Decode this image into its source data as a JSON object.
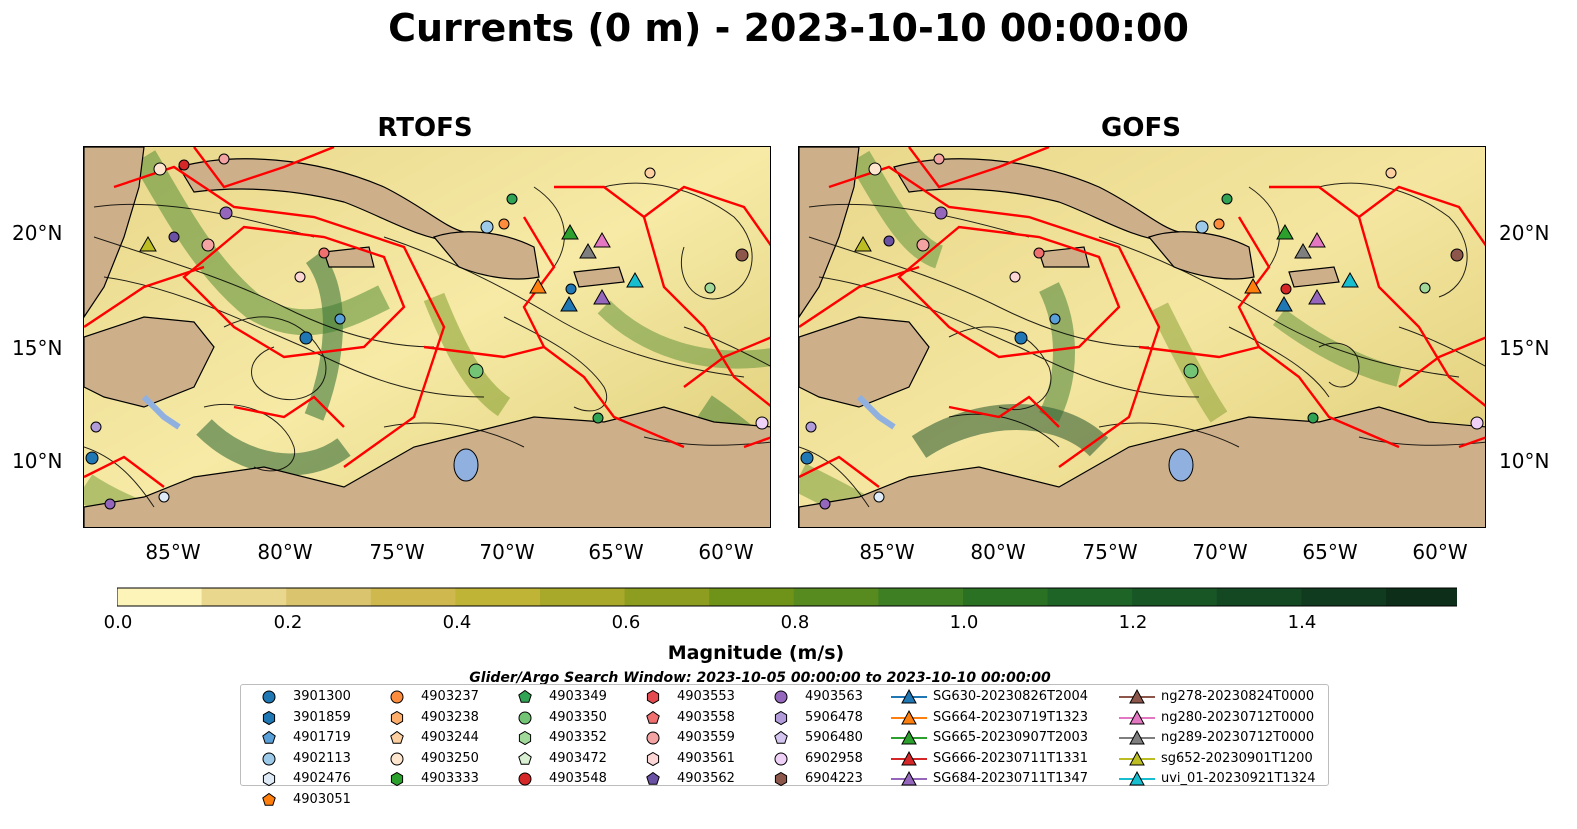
{
  "figure": {
    "title": "Currents (0 m) - 2023-10-10 00:00:00",
    "panels": [
      {
        "title": "RTOFS"
      },
      {
        "title": "GOFS"
      }
    ],
    "lat_labels": [
      "20°N",
      "15°N",
      "10°N"
    ],
    "lon_labels": [
      "85°W",
      "80°W",
      "75°W",
      "70°W",
      "65°W",
      "60°W"
    ],
    "colors": {
      "land": "#cdb08a",
      "lake": "#90b0e0",
      "eez_lines": "#ff0000",
      "streamlines": "#000000"
    }
  },
  "colorbar": {
    "label": "Magnitude (m/s)",
    "ticks": [
      "0.0",
      "0.2",
      "0.4",
      "0.6",
      "0.8",
      "1.0",
      "1.2",
      "1.4"
    ],
    "colors": [
      "#fcf4b8",
      "#ead78e",
      "#dbc46e",
      "#cfb84e",
      "#bfb436",
      "#a8a92a",
      "#8d9d1f",
      "#6f9219",
      "#578a1f",
      "#3e7f23",
      "#2a7124",
      "#1d6426",
      "#185626",
      "#134823",
      "#103b1f",
      "#0d2e19"
    ]
  },
  "legend": {
    "window_note": "Glider/Argo Search Window: 2023-10-05 00:00:00 to 2023-10-10 00:00:00",
    "items": [
      {
        "label": "3901300",
        "marker": "circle",
        "color": "#1f77b4"
      },
      {
        "label": "3901859",
        "marker": "hexagon",
        "color": "#1f77b4"
      },
      {
        "label": "4901719",
        "marker": "pentagon",
        "color": "#5aa0d8"
      },
      {
        "label": "4902113",
        "marker": "circle",
        "color": "#9ecae9"
      },
      {
        "label": "4902476",
        "marker": "hexagon",
        "color": "#deebf7"
      },
      {
        "label": "4903051",
        "marker": "pentagon",
        "color": "#ff7f0e"
      },
      {
        "label": "4903237",
        "marker": "circle",
        "color": "#fd8d3c"
      },
      {
        "label": "4903238",
        "marker": "hexagon",
        "color": "#fdae6b"
      },
      {
        "label": "4903244",
        "marker": "pentagon",
        "color": "#fdd0a2"
      },
      {
        "label": "4903250",
        "marker": "circle",
        "color": "#fee6ce"
      },
      {
        "label": "4903333",
        "marker": "hexagon",
        "color": "#2ca02c"
      },
      {
        "label": "4903349",
        "marker": "pentagon",
        "color": "#31a354"
      },
      {
        "label": "4903350",
        "marker": "circle",
        "color": "#74c476"
      },
      {
        "label": "4903352",
        "marker": "hexagon",
        "color": "#a1d99b"
      },
      {
        "label": "4903472",
        "marker": "pentagon",
        "color": "#d9f0d3"
      },
      {
        "label": "4903548",
        "marker": "circle",
        "color": "#d62728"
      },
      {
        "label": "4903553",
        "marker": "hexagon",
        "color": "#e34a4f"
      },
      {
        "label": "4903558",
        "marker": "pentagon",
        "color": "#f07070"
      },
      {
        "label": "4903559",
        "marker": "circle",
        "color": "#f4a3a3"
      },
      {
        "label": "4903561",
        "marker": "hexagon",
        "color": "#fcd5d5"
      },
      {
        "label": "4903562",
        "marker": "pentagon",
        "color": "#6a51a3"
      },
      {
        "label": "4903563",
        "marker": "circle",
        "color": "#9467bd"
      },
      {
        "label": "5906478",
        "marker": "hexagon",
        "color": "#b19cd9"
      },
      {
        "label": "5906480",
        "marker": "pentagon",
        "color": "#d4c4f0"
      },
      {
        "label": "6902958",
        "marker": "circle",
        "color": "#efd0f7"
      },
      {
        "label": "6904223",
        "marker": "hexagon",
        "color": "#8c564b"
      },
      {
        "label": "SG630-20230826T2004",
        "marker": "triangle",
        "color": "#1f77b4"
      },
      {
        "label": "SG664-20230719T1323",
        "marker": "triangle",
        "color": "#ff7f0e"
      },
      {
        "label": "SG665-20230907T2003",
        "marker": "triangle",
        "color": "#2ca02c"
      },
      {
        "label": "SG666-20230711T1331",
        "marker": "triangle",
        "color": "#d62728"
      },
      {
        "label": "SG684-20230711T1347",
        "marker": "triangle",
        "color": "#9467bd"
      },
      {
        "label": "ng278-20230824T0000",
        "marker": "triangle",
        "color": "#8c564b"
      },
      {
        "label": "ng280-20230712T0000",
        "marker": "triangle",
        "color": "#e377c2"
      },
      {
        "label": "ng289-20230712T0000",
        "marker": "triangle",
        "color": "#7f7f7f"
      },
      {
        "label": "sg652-20230901T1200",
        "marker": "triangle",
        "color": "#bcbd22"
      },
      {
        "label": "uvi_01-20230921T1324",
        "marker": "triangle",
        "color": "#17becf"
      }
    ]
  }
}
